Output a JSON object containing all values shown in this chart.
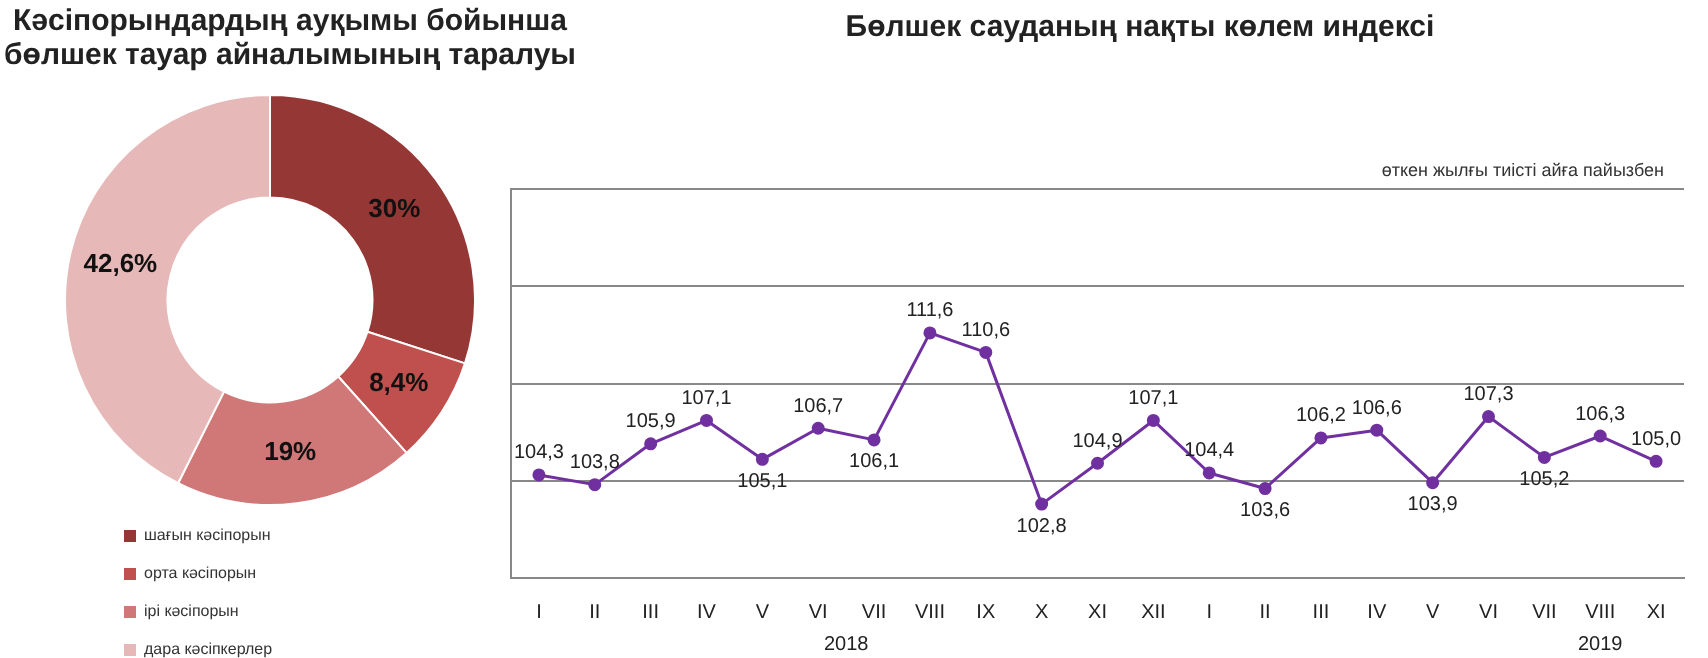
{
  "chart_data": [
    {
      "type": "donut",
      "title": "Кәсіпорындардың ауқымы бойынша бөлшек тауар айналымының таралуы",
      "categories": [
        "шағын кәсіпорын",
        "орта кәсіпорын",
        "ірі кәсіпорын",
        "дара кәсіпкерлер"
      ],
      "values": [
        30,
        8.4,
        19,
        42.6
      ],
      "value_labels": [
        "30%",
        "8,4%",
        "19%",
        "42,6%"
      ],
      "colors": [
        "#953735",
        "#c0504d",
        "#d07878",
        "#e6b9b8"
      ],
      "legend": "bottom left"
    },
    {
      "type": "line",
      "title": "Бөлшек сауданың нақты көлем индексі",
      "subtitle": "өткен жылғы тиісті айға пайызбен",
      "categories": [
        "I",
        "II",
        "III",
        "IV",
        "V",
        "VI",
        "VII",
        "VIII",
        "IX",
        "X",
        "XI",
        "XII",
        "I",
        "II",
        "III",
        "IV",
        "V",
        "VI",
        "VII",
        "VIII",
        "XI"
      ],
      "series": [
        {
          "color": "#7030a0",
          "values": [
            104.3,
            103.8,
            105.9,
            107.1,
            105.1,
            106.7,
            106.1,
            111.6,
            110.6,
            102.8,
            104.9,
            107.1,
            104.4,
            103.6,
            106.2,
            106.6,
            103.9,
            107.3,
            105.2,
            106.3,
            105.0
          ],
          "value_labels": [
            "104,3",
            "103,8",
            "105,9",
            "107,1",
            "105,1",
            "106,7",
            "106,1",
            "111,6",
            "110,6",
            "102,8",
            "104,9",
            "107,1",
            "104,4",
            "103,6",
            "106,2",
            "106,6",
            "103,9",
            "107,3",
            "105,2",
            "106,3",
            "105,0"
          ]
        }
      ],
      "annotations": [
        "2018",
        "2019"
      ],
      "ylim": [
        99,
        119
      ],
      "yticks": [
        {
          "value": 99,
          "label": null
        },
        {
          "value": 104,
          "label": null
        },
        {
          "value": 109,
          "label": null
        },
        {
          "value": 114,
          "label": null
        },
        {
          "value": 119,
          "label": null
        }
      ],
      "grid": "y",
      "marker": "circle",
      "line_style": "solid",
      "tick_labels": "x",
      "legend": false
    }
  ]
}
